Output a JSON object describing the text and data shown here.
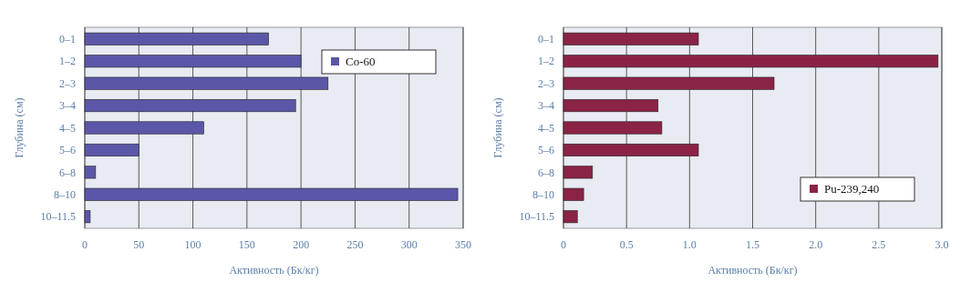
{
  "chart_data": [
    {
      "type": "bar",
      "orientation": "horizontal",
      "xlabel": "Активность (Бк/кг)",
      "ylabel": "Глубина (см)",
      "categories": [
        "0–1",
        "1–2",
        "2–3",
        "3–4",
        "4–5",
        "5–6",
        "6–8",
        "8–10",
        "10–11.5"
      ],
      "series": [
        {
          "name": "Co-60",
          "color": "#5b57a8",
          "values": [
            170,
            200,
            225,
            195,
            110,
            50,
            10,
            345,
            5
          ]
        }
      ],
      "xlim": [
        0,
        350
      ],
      "xticks": [
        0,
        50,
        100,
        150,
        200,
        250,
        300,
        350
      ],
      "grid": "x",
      "legend": "top right"
    },
    {
      "type": "bar",
      "orientation": "horizontal",
      "xlabel": "Активность (Бк/кг)",
      "ylabel": "Глубина (см)",
      "categories": [
        "0–1",
        "1–2",
        "2–3",
        "3–4",
        "4–5",
        "5–6",
        "6–8",
        "8–10",
        "10–11.5"
      ],
      "series": [
        {
          "name": "Pu-239,240",
          "color": "#8a2346",
          "values": [
            1.07,
            2.97,
            1.67,
            0.75,
            0.78,
            1.07,
            0.23,
            0.16,
            0.11
          ]
        }
      ],
      "xlim": [
        0,
        3
      ],
      "xticks": [
        0,
        {
          "value": 0.5,
          "label": "0.5"
        },
        {
          "value": 1,
          "label": "1.0"
        },
        {
          "value": 1.5,
          "label": "1.5"
        },
        {
          "value": 2,
          "label": "2.0"
        },
        {
          "value": 2.5,
          "label": "2.5"
        },
        {
          "value": 3,
          "label": "3.0"
        }
      ],
      "grid": "x",
      "legend": "bottom right"
    }
  ]
}
